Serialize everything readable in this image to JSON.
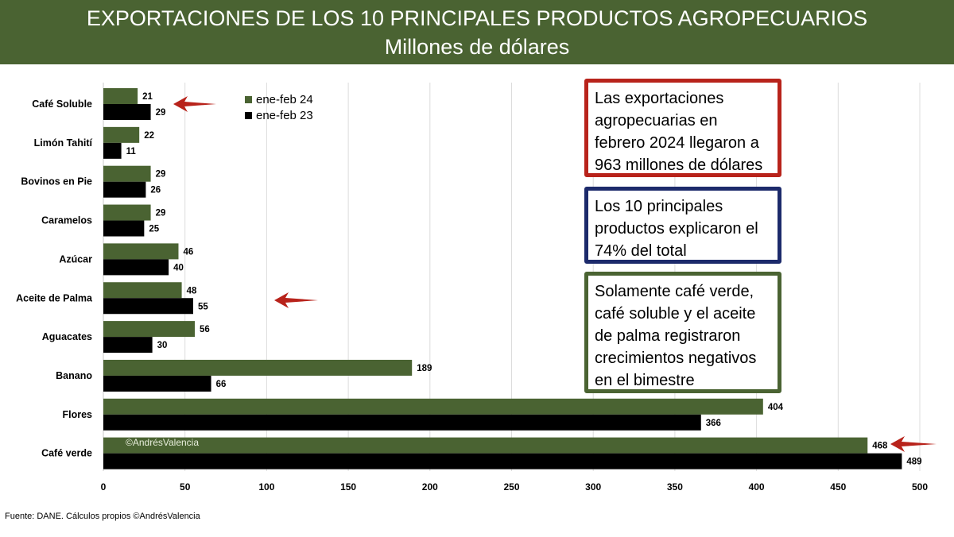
{
  "header": {
    "title": "EXPORTACIONES DE LOS 10 PRINCIPALES PRODUCTOS AGROPECUARIOS",
    "subtitle": "Millones de dólares"
  },
  "chart_data": {
    "type": "bar",
    "orientation": "horizontal",
    "categories": [
      "Café Soluble",
      "Limón Tahití",
      "Bovinos en Pie",
      "Caramelos",
      "Azúcar",
      "Aceite de Palma",
      "Aguacates",
      "Banano",
      "Flores",
      "Café verde"
    ],
    "series": [
      {
        "name": "ene-feb 24",
        "color": "#4a6332",
        "values": [
          21,
          22,
          29,
          29,
          46,
          48,
          56,
          189,
          404,
          468
        ]
      },
      {
        "name": "ene-feb 23",
        "color": "#000000",
        "values": [
          29,
          11,
          26,
          25,
          40,
          55,
          30,
          66,
          366,
          489
        ]
      }
    ],
    "xlim": [
      0,
      500
    ],
    "xticks": [
      0,
      50,
      100,
      150,
      200,
      250,
      300,
      350,
      400,
      450,
      500
    ],
    "grid": true,
    "legend": "top",
    "arrow_color": "#b8231b",
    "arrows": [
      "Café Soluble",
      "Aceite de Palma",
      "Café verde"
    ]
  },
  "notes": [
    {
      "text": "Las exportaciones agropecuarias en febrero 2024 llegaron a 963 millones de dólares",
      "border_color": "#b8231b"
    },
    {
      "text": "Los 10 principales productos explicaron el 74% del total",
      "border_color": "#1c2a6b"
    },
    {
      "text": "Solamente café verde, café soluble y el aceite de palma registraron crecimientos negativos en el bimestre",
      "border_color": "#4a6332"
    }
  ],
  "watermark": "©AndrésValencia",
  "source": "Fuente: DANE. Cálculos propios ©AndrésValencia"
}
